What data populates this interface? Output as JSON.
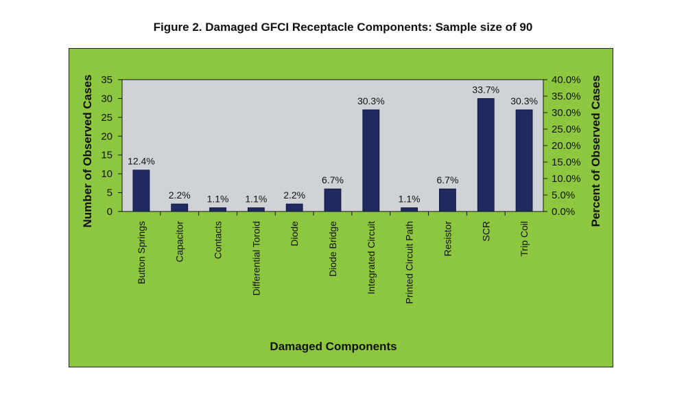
{
  "title": "Figure 2. Damaged GFCI Receptacle Components: Sample size of 90",
  "colors": {
    "panel": "#8dc63f",
    "plot_bg": "#cfd2d6",
    "bar": "#1f2a60",
    "axis": "#111111"
  },
  "chart_data": {
    "type": "bar",
    "categories": [
      "Button Springs",
      "Capacitor",
      "Contacts",
      "Differential Toroid",
      "Diode",
      "Diode Bridge",
      "Integrated Circuit",
      "Printed Circuit Path",
      "Resistor",
      "SCR",
      "Trip Coil"
    ],
    "values": [
      11,
      2,
      1,
      1,
      2,
      6,
      27,
      1,
      6,
      30,
      27
    ],
    "data_labels": [
      "12.4%",
      "2.2%",
      "1.1%",
      "1.1%",
      "2.2%",
      "6.7%",
      "30.3%",
      "1.1%",
      "6.7%",
      "33.7%",
      "30.3%"
    ],
    "xlabel": "Damaged Components",
    "ylabel": "Number of Observed Cases",
    "y2label": "Percent of Observed Cases",
    "ylim": [
      0,
      35
    ],
    "yticks": [
      "0",
      "5",
      "10",
      "15",
      "20",
      "25",
      "30",
      "35"
    ],
    "y2lim": [
      0,
      40
    ],
    "y2ticks": [
      "0.0%",
      "5.0%",
      "10.0%",
      "15.0%",
      "20.0%",
      "25.0%",
      "30.0%",
      "35.0%",
      "40.0%"
    ],
    "grid": false,
    "legend": "none"
  }
}
